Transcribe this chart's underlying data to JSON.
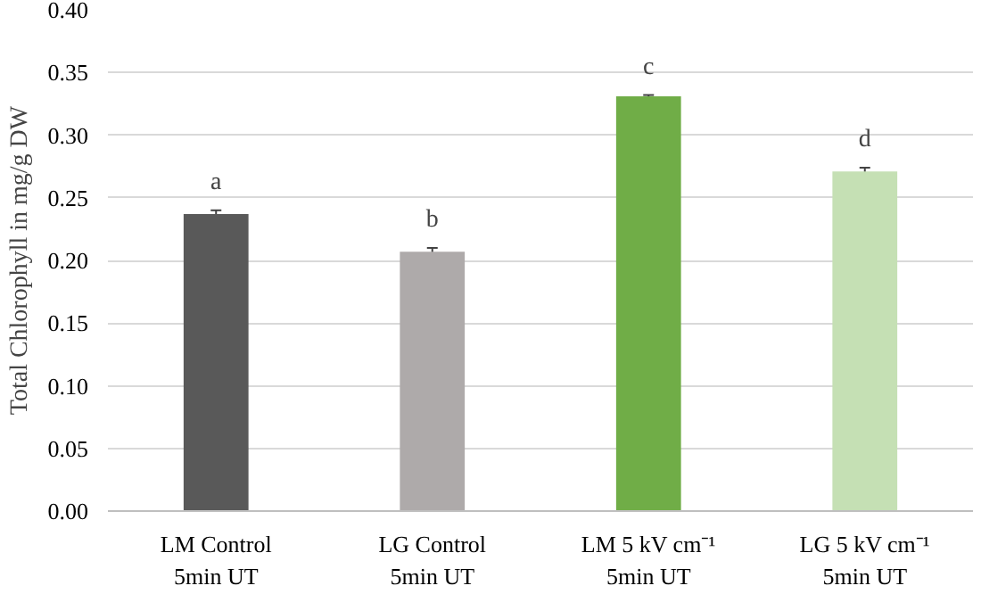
{
  "chart_data": {
    "type": "bar",
    "ylabel": "Total Chlorophyll in mg/g DW",
    "categories": [
      "LM Control\n5min UT",
      "LG Control\n5min UT",
      "LM 5 kV cm⁻¹\n5min UT",
      "LG 5 kV cm⁻¹\n5min UT"
    ],
    "values": [
      0.237,
      0.207,
      0.331,
      0.271
    ],
    "errors": [
      0.003,
      0.003,
      0.001,
      0.003
    ],
    "colors": [
      "#595959",
      "#aeaaaa",
      "#70ad47",
      "#c5e0b4"
    ],
    "ylim": [
      0,
      0.4
    ],
    "yticks": [
      {
        "value": 0,
        "label": "0.00"
      },
      {
        "value": 0.05,
        "label": "0.05"
      },
      {
        "value": 0.1,
        "label": "0.10"
      },
      {
        "value": 0.15,
        "label": "0.15"
      },
      {
        "value": 0.2,
        "label": "0.20"
      },
      {
        "value": 0.25,
        "label": "0.25"
      },
      {
        "value": 0.3,
        "label": "0.30"
      },
      {
        "value": 0.35,
        "label": "0.35"
      },
      {
        "value": 0.4,
        "label": "0.40"
      }
    ],
    "grid": "y",
    "annotations": [
      "a",
      "b",
      "c",
      "d"
    ]
  }
}
